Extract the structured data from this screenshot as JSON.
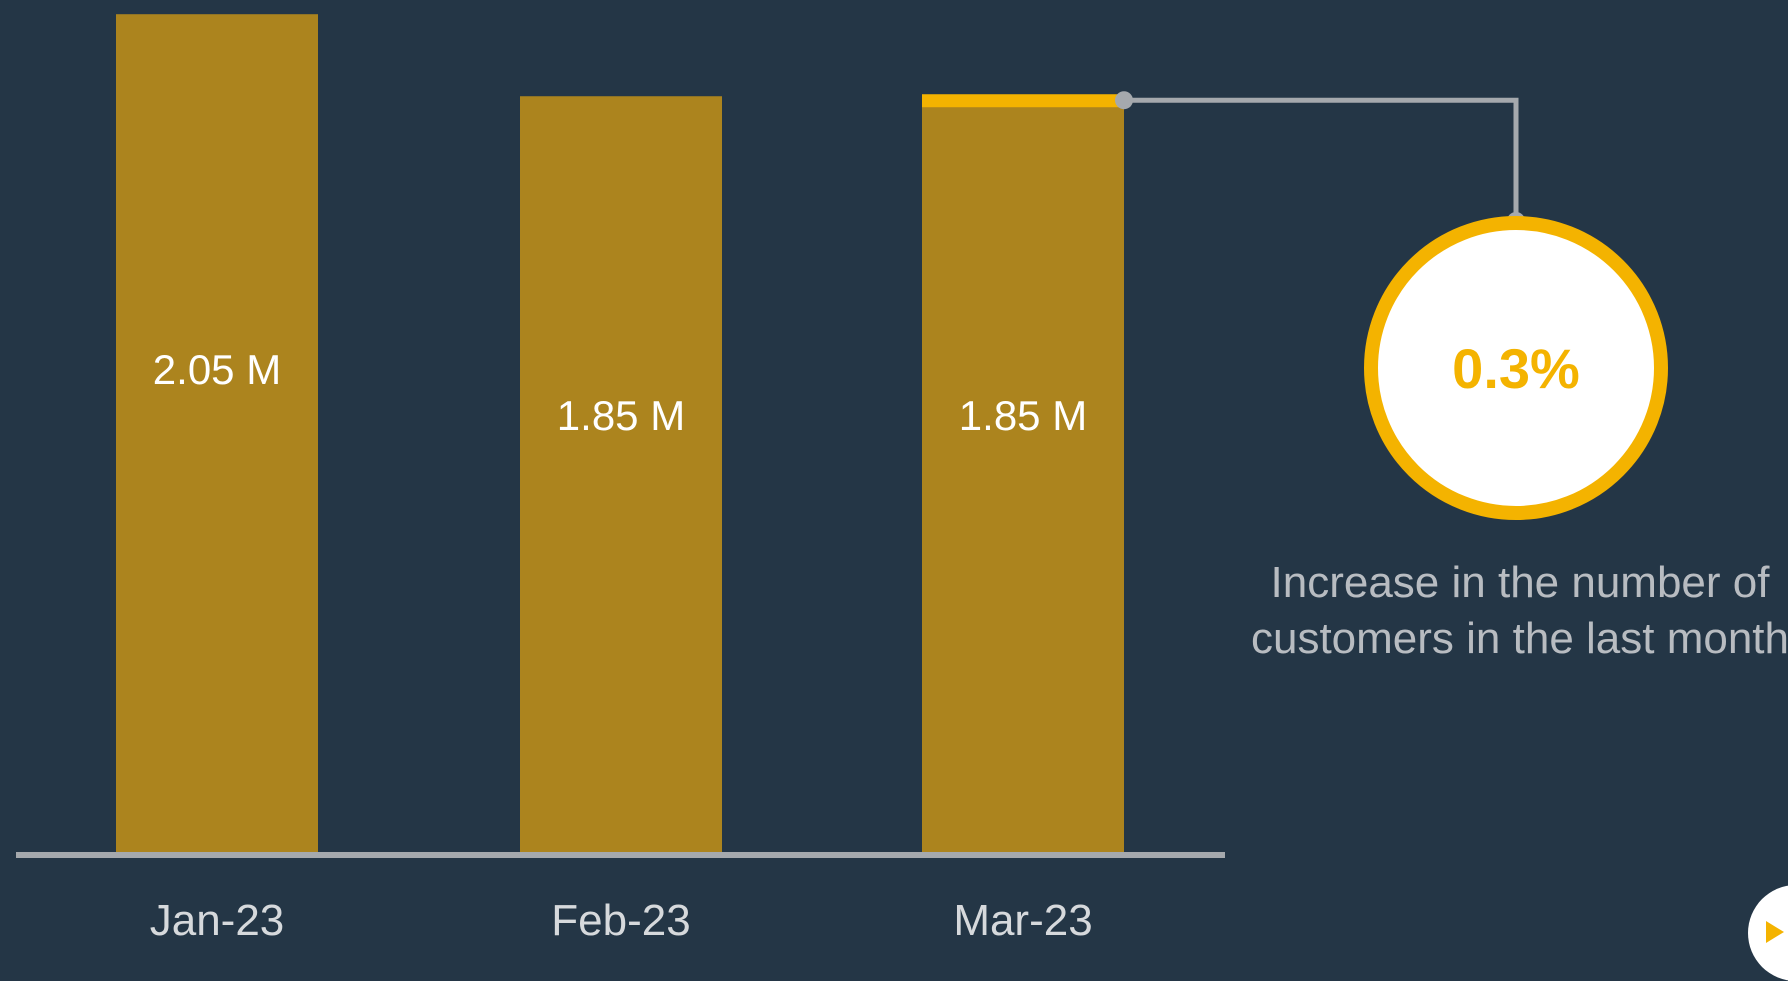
{
  "chart_data": {
    "type": "bar",
    "categories": [
      "Jan-23",
      "Feb-23",
      "Mar-23"
    ],
    "values": [
      2.05,
      1.85,
      1.85
    ],
    "value_labels": [
      "2.05 M",
      "1.85 M",
      "1.85 M"
    ],
    "unit": "M",
    "ylim": [
      0,
      2.07
    ],
    "grid": false,
    "highlight_category": "Mar-23",
    "callout": {
      "value": "0.3%",
      "text": "Increase in the number of customers in the last month"
    },
    "colors": {
      "background": "#243646",
      "bar": "#ac841e",
      "highlight": "#f4b300",
      "axis": "#a5a9ad",
      "connector": "#a5a9ad"
    }
  },
  "controls": {
    "play_icon": "play-icon"
  }
}
